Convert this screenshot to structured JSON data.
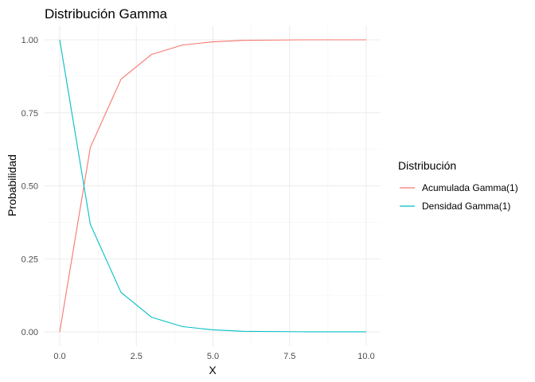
{
  "chart_data": {
    "type": "line",
    "title": "Distribución Gamma",
    "xlabel": "X",
    "ylabel": "Probabilidad",
    "xlim": [
      0,
      10
    ],
    "ylim": [
      0,
      1
    ],
    "x_ticks": [
      0,
      2.5,
      5,
      7.5,
      10
    ],
    "x_tick_labels": [
      "0.0",
      "2.5",
      "5.0",
      "7.5",
      "10.0"
    ],
    "y_ticks": [
      0,
      0.25,
      0.5,
      0.75,
      1
    ],
    "y_tick_labels": [
      "0.00",
      "0.25",
      "0.50",
      "0.75",
      "1.00"
    ],
    "grid": true,
    "legend": {
      "title": "Distribución",
      "position": "right"
    },
    "x": [
      0,
      1,
      2,
      3,
      4,
      5,
      6,
      7,
      8,
      9,
      10
    ],
    "series": [
      {
        "name": "Acumulada Gamma(1)",
        "color": "#F8766D",
        "values": [
          0,
          0.632,
          0.865,
          0.95,
          0.982,
          0.993,
          0.998,
          0.999,
          1.0,
          1.0,
          1.0
        ]
      },
      {
        "name": "Densidad Gamma(1)",
        "color": "#00BFC4",
        "values": [
          1.0,
          0.368,
          0.135,
          0.05,
          0.018,
          0.007,
          0.002,
          0.001,
          0.0003,
          0.0001,
          5e-05
        ]
      }
    ]
  }
}
